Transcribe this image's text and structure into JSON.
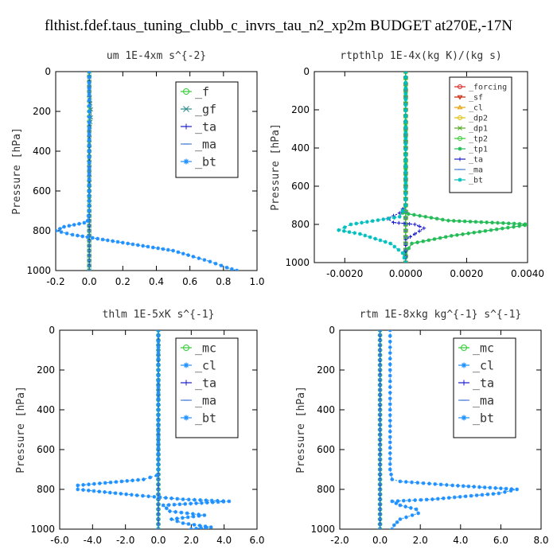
{
  "suptitle": "flthist.fdef.taus_tuning_clubb_c_invrs_tau_n2_xp2m  BUDGET at270E,-17N",
  "chart_data": [
    {
      "type": "line",
      "title": "um  1E-4xm s^{-2}",
      "xlabel": "",
      "ylabel": "Pressure [hPa]",
      "xlim": [
        -0.2,
        1.0
      ],
      "ylim": [
        1000,
        0
      ],
      "xticks": [
        "-0.2",
        "0.0",
        "0.2",
        "0.4",
        "0.6",
        "0.8",
        "1.0"
      ],
      "yticks": [
        "0",
        "200",
        "400",
        "600",
        "800",
        "1000"
      ],
      "legend_position": "top-right",
      "series": [
        {
          "name": "_f",
          "color": "#33cc33",
          "marker": "o",
          "x": [
            0,
            0,
            0,
            0,
            0,
            0,
            0,
            0,
            0,
            0,
            0
          ],
          "y": [
            0,
            100,
            200,
            300,
            400,
            500,
            600,
            700,
            800,
            900,
            1000
          ]
        },
        {
          "name": "_gf",
          "color": "#2e8b8b",
          "marker": "x",
          "x": [
            0,
            0,
            0.01,
            0.01,
            0,
            0,
            0,
            0,
            0,
            0,
            0
          ],
          "y": [
            0,
            100,
            190,
            230,
            300,
            500,
            700,
            800,
            900,
            950,
            1000
          ]
        },
        {
          "name": "_ta",
          "color": "#1a1acc",
          "marker": "+",
          "x": [
            0,
            0,
            0,
            0,
            0,
            0,
            0,
            0,
            0,
            0,
            0
          ],
          "y": [
            0,
            100,
            200,
            300,
            400,
            500,
            600,
            700,
            800,
            900,
            1000
          ]
        },
        {
          "name": "_ma",
          "color": "#4a7fd4",
          "marker": "-",
          "x": [
            0,
            0,
            0,
            0,
            0,
            0,
            0,
            0,
            0,
            0,
            0
          ],
          "y": [
            0,
            100,
            200,
            300,
            400,
            500,
            600,
            700,
            800,
            900,
            1000
          ]
        },
        {
          "name": "_bt",
          "color": "#1e90ff",
          "marker": "*",
          "x": [
            0,
            0,
            0,
            0,
            0,
            -0.01,
            -0.03,
            -0.15,
            -0.2,
            -0.1,
            0.05,
            0.2,
            0.35,
            0.5,
            0.62,
            0.72,
            0.82,
            0.88
          ],
          "y": [
            0,
            200,
            400,
            600,
            700,
            750,
            760,
            780,
            800,
            820,
            840,
            860,
            880,
            900,
            930,
            955,
            985,
            1000
          ]
        }
      ]
    },
    {
      "type": "line",
      "title": "rtpthlp  1E-4x(kg K)/(kg s)",
      "xlabel": "",
      "ylabel": "Pressure [hPa]",
      "xlim": [
        -0.003,
        0.004
      ],
      "ylim": [
        1000,
        0
      ],
      "xticks": [
        "-0.0020",
        "0.0000",
        "0.0020",
        "0.0040"
      ],
      "xtick_values": [
        -0.002,
        0,
        0.002,
        0.004
      ],
      "yticks": [
        "0",
        "200",
        "400",
        "600",
        "800",
        "1000"
      ],
      "legend_position": "top-right",
      "series": [
        {
          "name": "_forcing",
          "color": "#dd2222",
          "marker": "o",
          "x": [
            0,
            0,
            0,
            0,
            0,
            0,
            0,
            0,
            0,
            0,
            0
          ],
          "y": [
            0,
            100,
            200,
            300,
            400,
            500,
            600,
            700,
            800,
            900,
            1000
          ]
        },
        {
          "name": "_sf",
          "color": "#cc2200",
          "marker": "v",
          "x": [
            0,
            0,
            0,
            0,
            0,
            0,
            0,
            0,
            0,
            0,
            0
          ],
          "y": [
            0,
            100,
            200,
            300,
            400,
            500,
            600,
            700,
            800,
            900,
            1000
          ]
        },
        {
          "name": "_cl",
          "color": "#e6a000",
          "marker": "^",
          "x": [
            0,
            0,
            0,
            0,
            0,
            0,
            0,
            0,
            0,
            0,
            0
          ],
          "y": [
            0,
            100,
            200,
            300,
            400,
            500,
            600,
            700,
            800,
            900,
            1000
          ]
        },
        {
          "name": "_dp2",
          "color": "#e0c000",
          "marker": "o",
          "x": [
            0,
            0,
            0,
            0,
            0,
            0,
            0,
            0,
            0,
            0,
            0
          ],
          "y": [
            0,
            100,
            200,
            300,
            400,
            500,
            600,
            700,
            800,
            900,
            1000
          ]
        },
        {
          "name": "_dp1",
          "color": "#55aa22",
          "marker": "x",
          "x": [
            0,
            0,
            0,
            0,
            0,
            0,
            0,
            0,
            0,
            0,
            0
          ],
          "y": [
            0,
            100,
            200,
            300,
            400,
            500,
            600,
            700,
            800,
            900,
            1000
          ]
        },
        {
          "name": "_tp2",
          "color": "#33cc33",
          "marker": "o",
          "x": [
            0,
            0,
            0,
            0,
            0,
            0,
            0,
            0,
            0,
            0,
            0
          ],
          "y": [
            0,
            100,
            200,
            300,
            400,
            500,
            600,
            700,
            800,
            900,
            1000
          ]
        },
        {
          "name": "_tp1",
          "color": "#22bb55",
          "marker": "*",
          "x": [
            0,
            0,
            0,
            -0.0001,
            0.0014,
            0.0041,
            0.0015,
            0.0002,
            0,
            0
          ],
          "y": [
            0,
            600,
            700,
            740,
            780,
            800,
            860,
            900,
            950,
            1000
          ]
        },
        {
          "name": "_ta",
          "color": "#1a1acc",
          "marker": "+",
          "x": [
            0,
            0,
            -0.0002,
            -0.0006,
            -0.0004,
            0.0003,
            0.0006,
            0.0003,
            0,
            0
          ],
          "y": [
            0,
            700,
            740,
            770,
            790,
            800,
            820,
            850,
            880,
            1000
          ]
        },
        {
          "name": "_ma",
          "color": "#4a7fd4",
          "marker": "-",
          "x": [
            0,
            0,
            0,
            0,
            0,
            0,
            0,
            0,
            0,
            0,
            0
          ],
          "y": [
            0,
            100,
            200,
            300,
            400,
            500,
            600,
            700,
            800,
            900,
            1000
          ]
        },
        {
          "name": "_bt",
          "color": "#00bfbf",
          "marker": "*",
          "x": [
            0,
            0,
            -0.0002,
            -0.0018,
            -0.0022,
            -0.0015,
            -0.0005,
            -0.0001,
            0
          ],
          "y": [
            0,
            700,
            760,
            800,
            830,
            850,
            900,
            950,
            1000
          ]
        }
      ]
    },
    {
      "type": "line",
      "title": "thlm  1E-5xK s^{-1}",
      "xlabel": "",
      "ylabel": "Pressure [hPa]",
      "xlim": [
        -6.0,
        6.0
      ],
      "ylim": [
        1000,
        0
      ],
      "xticks": [
        "-6.0",
        "-4.0",
        "-2.0",
        "0.0",
        "2.0",
        "4.0",
        "6.0"
      ],
      "yticks": [
        "0",
        "200",
        "400",
        "600",
        "800",
        "1000"
      ],
      "legend_position": "top-right",
      "series": [
        {
          "name": "_mc",
          "color": "#33cc33",
          "marker": "o",
          "x": [
            0,
            0,
            0,
            0,
            0,
            0,
            0,
            0,
            0,
            0,
            0
          ],
          "y": [
            0,
            100,
            200,
            300,
            400,
            500,
            600,
            700,
            800,
            900,
            1000
          ]
        },
        {
          "name": "_cl",
          "color": "#1e90ff",
          "marker": "*",
          "x": [
            0,
            0,
            0,
            0,
            0,
            0,
            0,
            0,
            0,
            0,
            0
          ],
          "y": [
            0,
            100,
            200,
            300,
            400,
            500,
            600,
            700,
            800,
            900,
            1000
          ]
        },
        {
          "name": "_ta",
          "color": "#1a1acc",
          "marker": "+",
          "x": [
            0,
            0,
            0,
            0,
            0,
            0,
            0,
            0,
            0,
            0,
            0
          ],
          "y": [
            0,
            100,
            200,
            300,
            400,
            500,
            600,
            700,
            800,
            900,
            1000
          ]
        },
        {
          "name": "_ma",
          "color": "#4a7fd4",
          "marker": "-",
          "x": [
            0,
            0,
            0,
            0,
            0,
            0,
            0,
            0,
            0,
            0,
            0
          ],
          "y": [
            0,
            100,
            200,
            300,
            400,
            500,
            600,
            700,
            800,
            900,
            1000
          ]
        },
        {
          "name": "_bt",
          "color": "#1e90ff",
          "marker": "*",
          "x": [
            0,
            0,
            0,
            -0.1,
            -0.9,
            -4.9,
            -4.9,
            -1.3,
            1.5,
            4.3,
            0.3,
            0.7,
            2.8,
            0.8,
            1.5,
            3.2,
            2.6,
            2.0
          ],
          "y": [
            0,
            400,
            700,
            730,
            750,
            780,
            800,
            830,
            850,
            860,
            880,
            910,
            930,
            950,
            970,
            990,
            995,
            1000
          ]
        }
      ]
    },
    {
      "type": "line",
      "title": "rtm  1E-8xkg kg^{-1} s^{-1}",
      "xlabel": "",
      "ylabel": "Pressure [hPa]",
      "xlim": [
        -2.0,
        8.0
      ],
      "ylim": [
        1000,
        0
      ],
      "xticks": [
        "-2.0",
        "0.0",
        "2.0",
        "4.0",
        "6.0",
        "8.0"
      ],
      "yticks": [
        "0",
        "200",
        "400",
        "600",
        "800",
        "1000"
      ],
      "legend_position": "top-right",
      "series": [
        {
          "name": "_mc",
          "color": "#33cc33",
          "marker": "o",
          "x": [
            0,
            0,
            0,
            0,
            0,
            0,
            0,
            0,
            0,
            0,
            0
          ],
          "y": [
            0,
            100,
            200,
            300,
            400,
            500,
            600,
            700,
            800,
            900,
            1000
          ]
        },
        {
          "name": "_cl",
          "color": "#1e90ff",
          "marker": "*",
          "x": [
            0,
            0,
            0,
            0,
            0,
            0,
            0,
            0,
            0,
            0,
            0
          ],
          "y": [
            0,
            100,
            200,
            300,
            400,
            500,
            600,
            700,
            800,
            900,
            1000
          ]
        },
        {
          "name": "_ta",
          "color": "#1a1acc",
          "marker": "+",
          "x": [
            0,
            0,
            0,
            0,
            0,
            0,
            0,
            0,
            0,
            0,
            0
          ],
          "y": [
            0,
            100,
            200,
            300,
            400,
            500,
            600,
            700,
            800,
            900,
            1000
          ]
        },
        {
          "name": "_ma",
          "color": "#4a7fd4",
          "marker": "-",
          "x": [
            0,
            0,
            0,
            0,
            0,
            0,
            0,
            0,
            0,
            0,
            0
          ],
          "y": [
            0,
            100,
            200,
            300,
            400,
            500,
            600,
            700,
            800,
            900,
            1000
          ]
        },
        {
          "name": "_bt",
          "color": "#1e90ff",
          "marker": "*",
          "x": [
            0.5,
            0.5,
            0.5,
            0.6,
            1.0,
            3.6,
            6.8,
            5.9,
            2.6,
            0.6,
            1.0,
            1.8,
            1.9,
            1.0,
            0.7,
            0.6
          ],
          "y": [
            0,
            400,
            700,
            750,
            760,
            780,
            800,
            820,
            850,
            860,
            880,
            900,
            920,
            950,
            980,
            1000
          ]
        }
      ]
    }
  ]
}
